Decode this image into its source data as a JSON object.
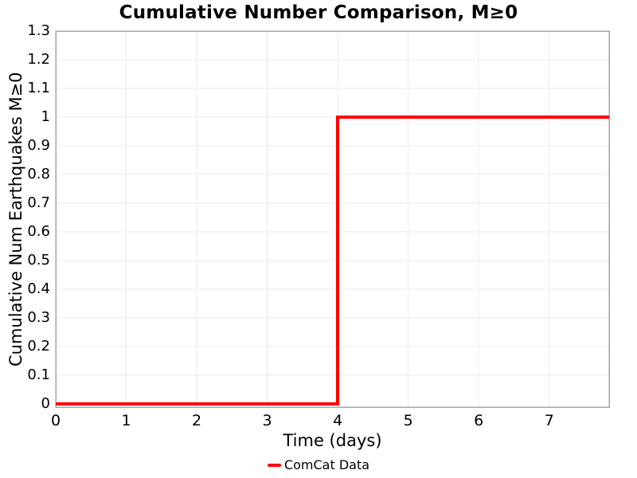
{
  "chart_data": {
    "type": "line",
    "title": "Cumulative Number Comparison, M≥0",
    "xlabel": "Time (days)",
    "ylabel": "Cumulative Num Earthquakes M≥0",
    "xlim": [
      0,
      7.85
    ],
    "ylim": [
      0,
      1.3
    ],
    "xtick_labels": [
      "0",
      "1",
      "2",
      "3",
      "4",
      "5",
      "6",
      "7"
    ],
    "ytick_labels": [
      "0",
      "0.1",
      "0.2",
      "0.3",
      "0.4",
      "0.5",
      "0.6",
      "0.7",
      "0.8",
      "0.9",
      "1",
      "1.1",
      "1.2",
      "1.3"
    ],
    "grid": true,
    "legend_position": "bottom-center",
    "series": [
      {
        "name": "ComCat Data",
        "color": "#ff0000",
        "line_width": 4,
        "shape": "step-hv",
        "points": [
          [
            0,
            0
          ],
          [
            4,
            0
          ],
          [
            4,
            1
          ],
          [
            7.85,
            1
          ]
        ]
      }
    ]
  },
  "colors": {
    "grid": "#ebebeb",
    "border": "#a6a6a6",
    "text": "#000000",
    "background": "#ffffff"
  }
}
